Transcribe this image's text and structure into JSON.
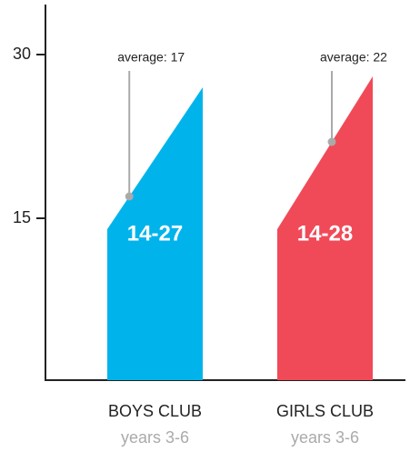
{
  "chart_data": {
    "type": "range",
    "categories": [
      "BOYS CLUB",
      "GIRLS CLUB"
    ],
    "subtitles": [
      "years 3-6",
      "years 3-6"
    ],
    "low": [
      14,
      14
    ],
    "high": [
      27,
      28
    ],
    "range_labels": [
      "14-27",
      "14-28"
    ],
    "average": [
      17,
      22
    ],
    "average_labels": [
      "average: 17",
      "average: 22"
    ],
    "colors": [
      "#00b4eb",
      "#f04a58"
    ],
    "ylim": [
      0,
      35
    ],
    "yticks": [
      15,
      30
    ]
  }
}
